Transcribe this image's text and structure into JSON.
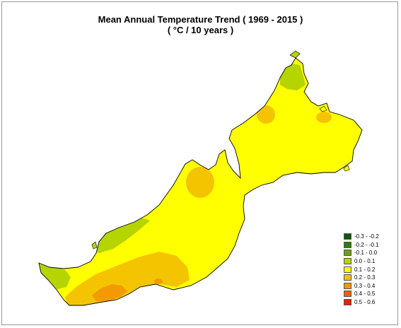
{
  "title_line1": "Mean Annual Temperature Trend ( 1969 - 2015 )",
  "title_line2": "( °C / 10 years )",
  "colors": {
    "base_yellow": "#ffff00",
    "zone_0_0_to_0_1": "#b5d400",
    "zone_0_2_to_0_3": "#f5c400",
    "zone_0_3_to_0_4": "#f29a00",
    "outline": "#000000"
  },
  "legend": [
    {
      "label": "-0.3 - -0.2",
      "color": "#0b5a0b"
    },
    {
      "label": "-0.2 - -0.1",
      "color": "#2e7d10"
    },
    {
      "label": "-0.1 - 0.0",
      "color": "#6e9e1a"
    },
    {
      "label": "0.0 - 0.1",
      "color": "#b5d400"
    },
    {
      "label": "0.1 - 0.2",
      "color": "#ffff00"
    },
    {
      "label": "0.2 - 0.3",
      "color": "#f5c400"
    },
    {
      "label": "0.3 - 0.4",
      "color": "#f29a00"
    },
    {
      "label": "0.4 - 0.5",
      "color": "#f06000"
    },
    {
      "label": "0.5 - 0.6",
      "color": "#e62000"
    }
  ]
}
